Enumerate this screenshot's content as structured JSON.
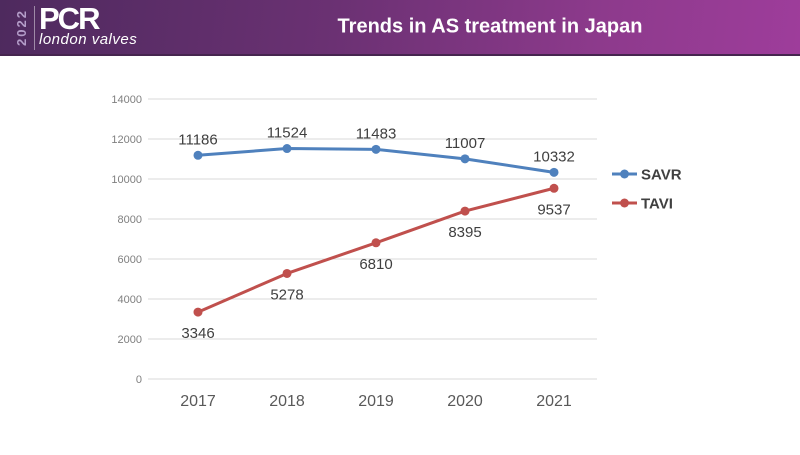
{
  "header": {
    "logo": {
      "year": "2022",
      "brand": "PCR",
      "subtitle": "london valves"
    },
    "title": "Trends in AS treatment in Japan",
    "colors": {
      "gradient_left": "#4e2a5e",
      "gradient_right": "#9e3d9b"
    }
  },
  "chart_data": {
    "type": "line",
    "title": "Trends in AS treatment in Japan",
    "categories": [
      "2017",
      "2018",
      "2019",
      "2020",
      "2021"
    ],
    "series": [
      {
        "name": "SAVR",
        "values": [
          11186,
          11524,
          11483,
          11007,
          10332
        ],
        "color": "#4f81bd",
        "label_position": "above"
      },
      {
        "name": "TAVI",
        "values": [
          3346,
          5278,
          6810,
          8395,
          9537
        ],
        "color": "#c0504d",
        "label_position": "below"
      }
    ],
    "xlabel": "",
    "ylabel": "",
    "ylim": [
      0,
      14000
    ],
    "ytick_step": 2000,
    "grid": "horizontal",
    "gridline_color": "#d9d9d9",
    "markers": true,
    "legend_position": "right",
    "tick_label_color": "#7f7f7f",
    "axis_label_color": "#595959",
    "data_label_color": "#3f3f3f",
    "legend_text_color": "#404040"
  }
}
